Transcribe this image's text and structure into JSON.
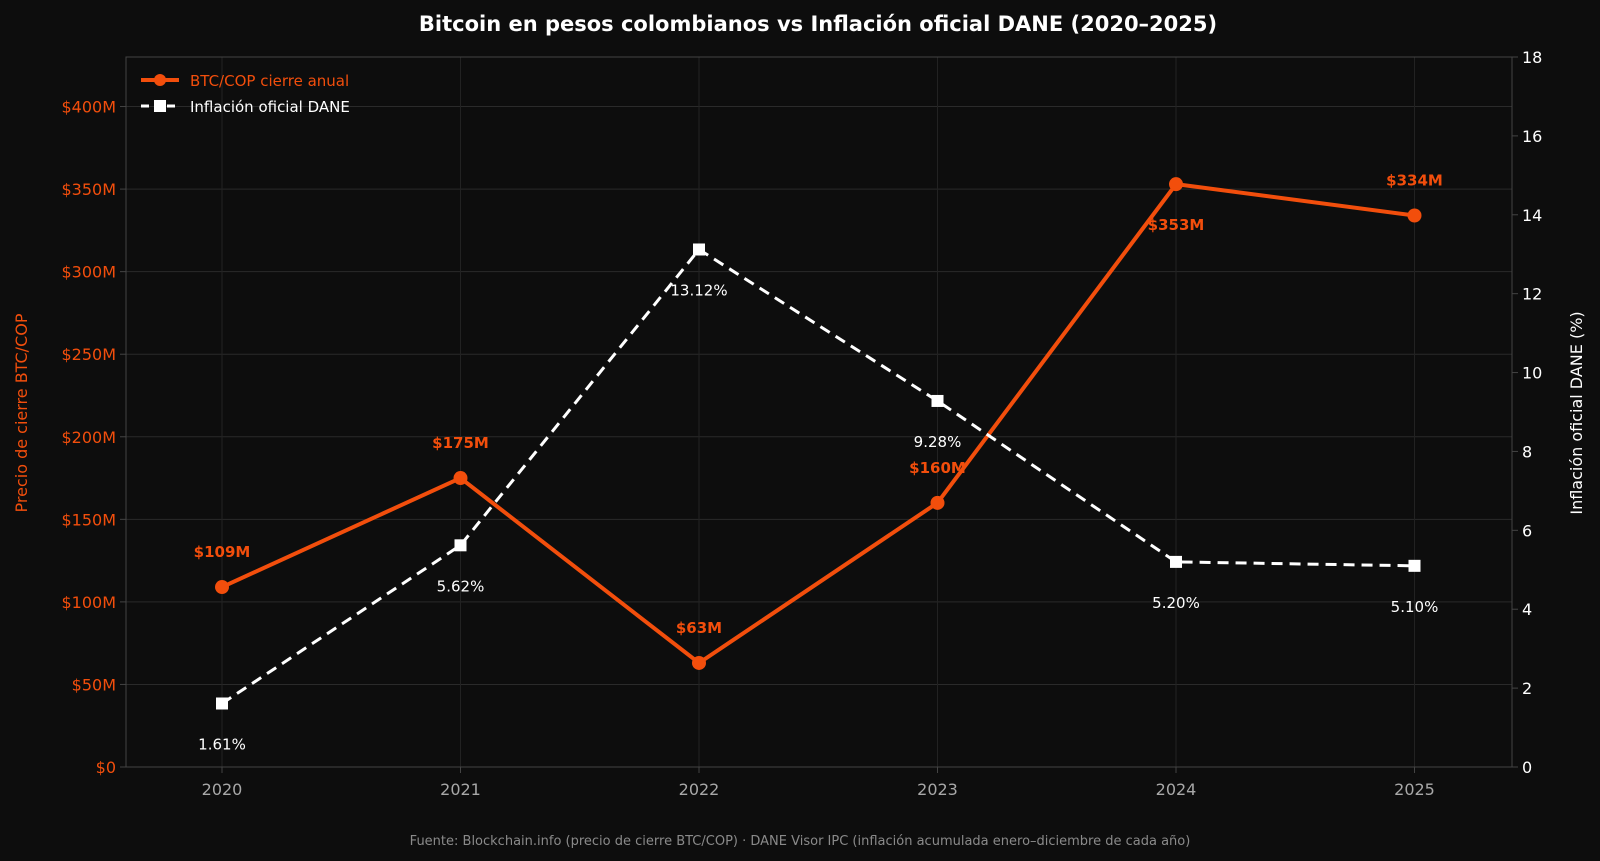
{
  "chart_data": {
    "type": "line",
    "title": "Bitcoin en pesos colombianos vs Inflación oficial DANE (2020–2025)",
    "source": "Fuente: Blockchain.info (precio de cierre BTC/COP) · DANE Visor IPC (inflación acumulada enero–diciembre de cada año)",
    "x": [
      "2020",
      "2021",
      "2022",
      "2023",
      "2024",
      "2025"
    ],
    "y_left": {
      "label": "Precio de cierre BTC/COP",
      "range": [
        0,
        430
      ],
      "ticks": [
        0,
        50,
        100,
        150,
        200,
        250,
        300,
        350,
        400
      ],
      "tick_labels": [
        "$0",
        "$50M",
        "$100M",
        "$150M",
        "$200M",
        "$250M",
        "$300M",
        "$350M",
        "$400M"
      ]
    },
    "y_right": {
      "label": "Inflación oficial DANE (%)",
      "range": [
        0,
        18
      ],
      "ticks": [
        0,
        2,
        4,
        6,
        8,
        10,
        12,
        14,
        16,
        18
      ],
      "tick_labels": [
        "0",
        "2",
        "4",
        "6",
        "8",
        "10",
        "12",
        "14",
        "16",
        "18"
      ]
    },
    "series": [
      {
        "name": "BTC/COP cierre anual",
        "axis": "left",
        "color": "#f24e0c",
        "marker": "circle",
        "line": "solid",
        "values": [
          109,
          175,
          63,
          160,
          353,
          334
        ],
        "data_labels": [
          "$109M",
          "$175M",
          "$63M",
          "$160M",
          "$353M",
          "$334M"
        ]
      },
      {
        "name": "Inflación oficial DANE",
        "axis": "right",
        "color": "#ffffff",
        "marker": "square",
        "line": "dashed",
        "values": [
          1.61,
          5.62,
          13.12,
          9.28,
          5.2,
          5.1
        ],
        "data_labels": [
          "1.61%",
          "5.62%",
          "13.12%",
          "9.28%",
          "5.20%",
          "5.10%"
        ]
      }
    ],
    "grid": true,
    "legend_position": "top-left",
    "colors": {
      "background": "#0d0d0d",
      "grid": "#2a2a2a",
      "axis": "#444444",
      "left_axis_text": "#f24e0c",
      "right_axis_text": "#ffffff",
      "x_tick_text": "#a8a8a8"
    }
  }
}
